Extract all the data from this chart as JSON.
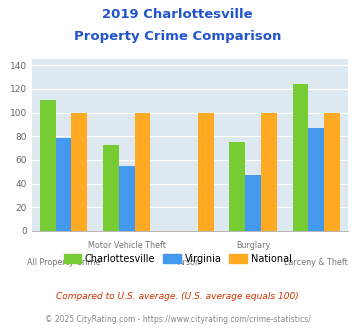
{
  "title_line1": "2019 Charlottesville",
  "title_line2": "Property Crime Comparison",
  "categories": [
    "All Property Crime",
    "Motor Vehicle Theft",
    "Arson",
    "Burglary",
    "Larceny & Theft"
  ],
  "charlottesville": [
    111,
    73,
    0,
    75,
    124
  ],
  "virginia": [
    79,
    55,
    0,
    47,
    87
  ],
  "national": [
    100,
    100,
    100,
    100,
    100
  ],
  "bar_colors": {
    "charlottesville": "#77cc33",
    "virginia": "#4499ee",
    "national": "#ffaa22"
  },
  "ylim": [
    0,
    145
  ],
  "yticks": [
    0,
    20,
    40,
    60,
    80,
    100,
    120,
    140
  ],
  "legend_labels": [
    "Charlottesville",
    "Virginia",
    "National"
  ],
  "footnote1": "Compared to U.S. average. (U.S. average equals 100)",
  "footnote2": "© 2025 CityRating.com - https://www.cityrating.com/crime-statistics/",
  "title_color": "#2255cc",
  "footnote1_color": "#cc3300",
  "footnote2_color": "#888888",
  "plot_bg_color": "#dde8f0"
}
